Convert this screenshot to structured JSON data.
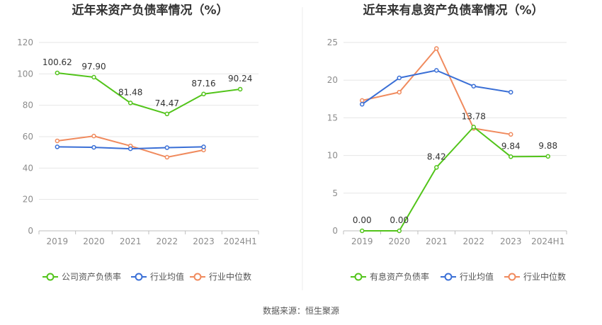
{
  "source": "数据来源：恒生聚源",
  "colors": {
    "green": "#52c41a",
    "blue": "#3a6fd6",
    "orange": "#f08a5d",
    "grid": "#e6e6e6",
    "axis": "#bfbfbf"
  },
  "chart_data": [
    {
      "type": "line",
      "title": "近年来资产负债率情况（%）",
      "categories": [
        "2019",
        "2020",
        "2021",
        "2022",
        "2023",
        "2024H1"
      ],
      "ylim": [
        0,
        120
      ],
      "yticks": [
        "0",
        "20",
        "40",
        "60",
        "80",
        "100",
        "120"
      ],
      "ytick_values": [
        0,
        20,
        40,
        60,
        80,
        100,
        120
      ],
      "grid": true,
      "legend_position": "bottom",
      "series": [
        {
          "name": "公司资产负债率",
          "color": "#52c41a",
          "values": [
            100.62,
            97.9,
            81.48,
            74.47,
            87.16,
            90.24
          ],
          "labels": [
            "100.62",
            "97.90",
            "81.48",
            "74.47",
            "87.16",
            "90.24"
          ]
        },
        {
          "name": "行业均值",
          "color": "#3a6fd6",
          "values": [
            53.5,
            53.2,
            52.3,
            53.0,
            53.5,
            null
          ],
          "labels": []
        },
        {
          "name": "行业中位数",
          "color": "#f08a5d",
          "values": [
            57.3,
            60.4,
            54.1,
            46.9,
            51.5,
            null
          ],
          "labels": []
        }
      ]
    },
    {
      "type": "line",
      "title": "近年来有息资产负债率情况（%）",
      "categories": [
        "2019",
        "2020",
        "2021",
        "2022",
        "2023",
        "2024H1"
      ],
      "ylim": [
        0,
        25
      ],
      "yticks": [
        "0",
        "5",
        "10",
        "15",
        "20",
        "25"
      ],
      "ytick_values": [
        0,
        5,
        10,
        15,
        20,
        25
      ],
      "grid": true,
      "legend_position": "bottom",
      "series": [
        {
          "name": "有息资产负债率",
          "color": "#52c41a",
          "values": [
            0.0,
            0.0,
            8.42,
            13.78,
            9.84,
            9.88
          ],
          "labels": [
            "0.00",
            "0.00",
            "8.42",
            "13.78",
            "9.84",
            "9.88"
          ]
        },
        {
          "name": "行业均值",
          "color": "#3a6fd6",
          "values": [
            16.8,
            20.3,
            21.3,
            19.2,
            18.4,
            null
          ],
          "labels": []
        },
        {
          "name": "行业中位数",
          "color": "#f08a5d",
          "values": [
            17.3,
            18.4,
            24.2,
            13.6,
            12.8,
            null
          ],
          "labels": []
        }
      ]
    }
  ]
}
